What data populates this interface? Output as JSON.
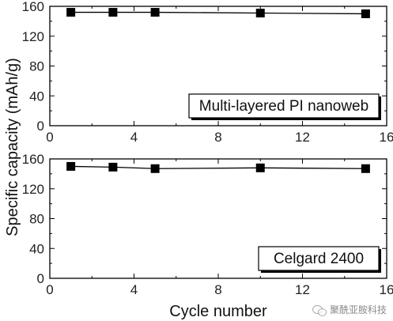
{
  "chart_data": [
    {
      "type": "line",
      "title": "",
      "xlabel": "",
      "ylabel": "",
      "xlim": [
        0,
        16
      ],
      "ylim": [
        0,
        160
      ],
      "xticks": [
        0,
        4,
        8,
        12,
        16
      ],
      "yticks": [
        0,
        40,
        80,
        120,
        160
      ],
      "grid": false,
      "legend_position": "bottom-right",
      "series": [
        {
          "name": "Multi-layered PI nanoweb",
          "color": "#000000",
          "marker": "square",
          "x": [
            1,
            3,
            5,
            10,
            15
          ],
          "y": [
            152,
            152,
            152,
            151,
            150
          ]
        }
      ]
    },
    {
      "type": "line",
      "title": "",
      "xlabel": "Cycle number",
      "ylabel": "",
      "xlim": [
        0,
        16
      ],
      "ylim": [
        0,
        160
      ],
      "xticks": [
        0,
        4,
        8,
        12,
        16
      ],
      "yticks": [
        0,
        40,
        80,
        120,
        160
      ],
      "grid": false,
      "legend_position": "bottom-right",
      "series": [
        {
          "name": "Celgard 2400",
          "color": "#000000",
          "marker": "square",
          "x": [
            1,
            3,
            5,
            10,
            15
          ],
          "y": [
            150,
            149,
            147,
            148,
            147
          ]
        }
      ]
    }
  ],
  "shared_ylabel": "Specific capacity (mAh/g)",
  "watermark": {
    "text": "聚酰亚胺科技",
    "icon": "wechat-icon"
  }
}
